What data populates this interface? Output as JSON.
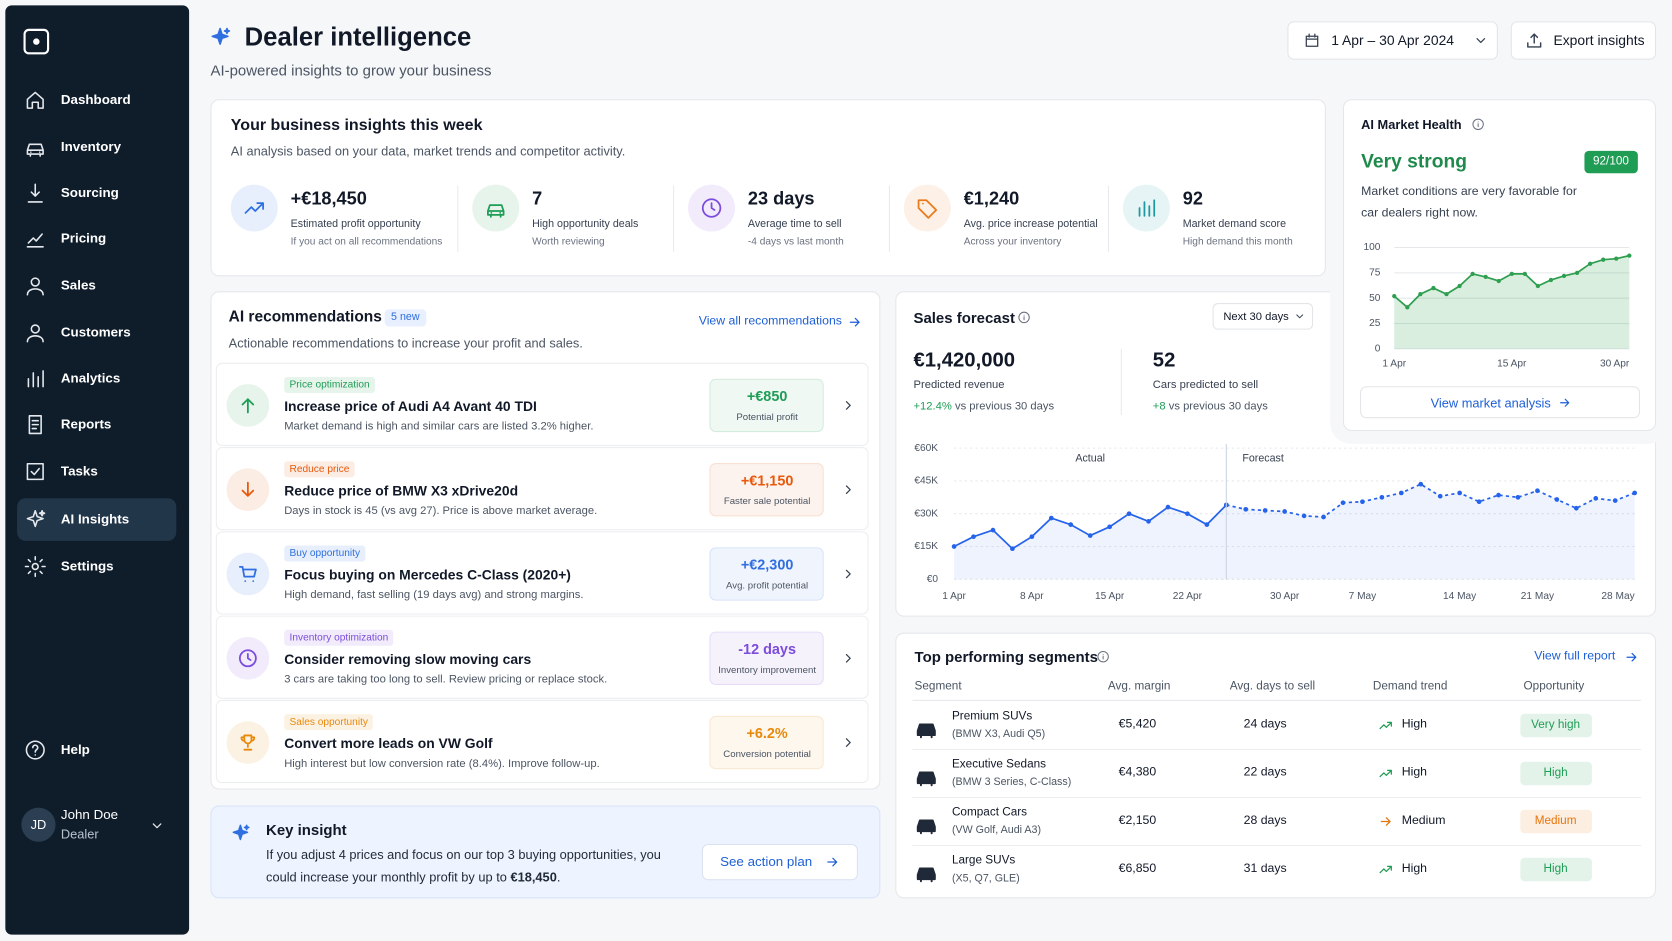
{
  "sidebar": {
    "nav": [
      "Dashboard",
      "Inventory",
      "Sourcing",
      "Pricing",
      "Sales",
      "Customers",
      "Analytics",
      "Reports",
      "Tasks",
      "AI Insights",
      "Settings"
    ],
    "help": "Help",
    "user": {
      "initials": "JD",
      "name": "John Doe",
      "role": "Dealer"
    }
  },
  "header": {
    "title": "Dealer intelligence",
    "subtitle": "AI-powered insights to grow your business",
    "date_range": "1 Apr – 30 Apr 2024",
    "export": "Export insights"
  },
  "insights": {
    "title": "Your business insights this week",
    "subtitle": "AI analysis based on your data, market trends and competitor activity.",
    "items": [
      {
        "value": "+€18,450",
        "label": "Estimated profit opportunity",
        "note": "If you act on all recommendations",
        "color": "#2f6fe0"
      },
      {
        "value": "7",
        "label": "High opportunity deals",
        "note": "Worth reviewing",
        "color": "#1f9d55"
      },
      {
        "value": "23 days",
        "label": "Average time to sell",
        "note": "-4 days vs last month",
        "color": "#7c4ddb"
      },
      {
        "value": "€1,240",
        "label": "Avg. price increase potential",
        "note": "Across your inventory",
        "color": "#ea7a1a"
      },
      {
        "value": "92",
        "label": "Market demand score",
        "note": "High demand this month",
        "color": "#1c9aa0"
      }
    ]
  },
  "recommendations": {
    "title": "AI recommendations",
    "badge": "5 new",
    "link": "View all recommendations",
    "subtitle": "Actionable recommendations to increase your profit and sales.",
    "items": [
      {
        "tag": "Price optimization",
        "title": "Increase price of Audi A4 Avant 40 TDI",
        "description": "Market demand is high and similar cars are listed 3.2% higher.",
        "impact": "+€850",
        "impact_label": "Potential profit",
        "color": "#1f9d55"
      },
      {
        "tag": "Reduce price",
        "title": "Reduce price of BMW X3 xDrive20d",
        "description": "Days in stock is 45 (vs avg 27). Price is above market average.",
        "impact": "+€1,150",
        "impact_label": "Faster sale potential",
        "color": "#e8590c"
      },
      {
        "tag": "Buy opportunity",
        "title": "Focus buying on Mercedes C-Class (2020+)",
        "description": "High demand, fast selling (19 days avg) and strong margins.",
        "impact": "+€2,300",
        "impact_label": "Avg. profit potential",
        "color": "#2f6fe0"
      },
      {
        "tag": "Inventory optimization",
        "title": "Consider removing slow moving cars",
        "description": "3 cars are taking too long to sell. Review pricing or replace stock.",
        "impact": "-12 days",
        "impact_label": "Inventory improvement",
        "color": "#7c4ddb"
      },
      {
        "tag": "Sales opportunity",
        "title": "Convert more leads on VW Golf",
        "description": "High interest but low conversion rate (8.4%). Improve follow-up.",
        "impact": "+6.2%",
        "impact_label": "Conversion potential",
        "color": "#e8890c"
      }
    ]
  },
  "key_insight": {
    "title": "Key insight",
    "text": "If you adjust 4 prices and focus on our top 3 buying opportunities, you could increase your monthly profit by up to",
    "highlight": "€18,450",
    "end": ".",
    "button": "See action plan"
  },
  "market_health": {
    "title": "AI Market Health",
    "rating": "Very strong",
    "score": "92/100",
    "description": "Market conditions are very favorable for car dealers right now.",
    "link": "View market analysis"
  },
  "sales_forecast": {
    "title": "Sales forecast",
    "period": "Next 30 days",
    "stats": [
      {
        "value": "€1,420,000",
        "label": "Predicted revenue",
        "change": "+12.4%",
        "compare": "vs previous 30 days"
      },
      {
        "value": "52",
        "label": "Cars predicted to sell",
        "change": "+8",
        "compare": "vs previous 30 days"
      }
    ]
  },
  "segments": {
    "title": "Top performing segments",
    "link": "View full report",
    "columns": [
      "Segment",
      "Avg. margin",
      "Avg. days to sell",
      "Demand trend",
      "Opportunity"
    ],
    "rows": [
      {
        "name": "Premium SUVs",
        "models": "(BMW X3, Audi Q5)",
        "margin": "€5,420",
        "days": "24 days",
        "trend": "High",
        "opportunity": "Very high",
        "color": "#1f9d55"
      },
      {
        "name": "Executive Sedans",
        "models": "(BMW 3 Series, C-Class)",
        "margin": "€4,380",
        "days": "22 days",
        "trend": "High",
        "opportunity": "High",
        "color": "#1f9d55"
      },
      {
        "name": "Compact Cars",
        "models": "(VW Golf, Audi A3)",
        "margin": "€2,150",
        "days": "28 days",
        "trend": "Medium",
        "opportunity": "Medium",
        "color": "#e8740c"
      },
      {
        "name": "Large SUVs",
        "models": "(X5, Q7, GLE)",
        "margin": "€6,850",
        "days": "31 days",
        "trend": "High",
        "opportunity": "High",
        "color": "#1f9d55"
      }
    ]
  },
  "chart_data": [
    {
      "type": "line",
      "categories": [
        "1 Apr",
        null,
        null,
        null,
        null,
        null,
        null,
        null,
        null,
        "15 Apr",
        null,
        null,
        null,
        null,
        null,
        null,
        null,
        null,
        "30 Apr"
      ],
      "values": [
        52,
        41,
        54,
        60,
        54,
        62,
        74,
        71,
        67,
        74,
        74,
        62,
        68,
        72,
        75,
        84,
        88,
        89,
        92
      ],
      "color": "#2e9e4f",
      "ylim": [
        0,
        100
      ],
      "yticks": [
        0,
        25,
        50,
        75,
        100
      ],
      "grid": true
    },
    {
      "type": "line",
      "categories": [
        "1 Apr",
        null,
        null,
        null,
        "8 Apr",
        null,
        null,
        null,
        "15 Apr",
        null,
        null,
        null,
        "22 Apr",
        null,
        null,
        null,
        null,
        "30 Apr",
        null,
        null,
        null,
        "7 May",
        null,
        null,
        null,
        null,
        "14 May",
        null,
        null,
        null,
        "21 May",
        null,
        null,
        null,
        null,
        "28 May"
      ],
      "series": [
        {
          "name": "Actual",
          "color": "#2563eb",
          "dashed": false,
          "values": [
            15000,
            19500,
            22500,
            14000,
            19500,
            28000,
            25000,
            20000,
            24000,
            30000,
            26500,
            33000,
            30000,
            25000,
            34000,
            null,
            null,
            null,
            null,
            null,
            null,
            null,
            null,
            null,
            null,
            null,
            null,
            null,
            null,
            null,
            null,
            null,
            null,
            null,
            null,
            null
          ]
        },
        {
          "name": "Forecast",
          "color": "#2563eb",
          "dashed": true,
          "values": [
            null,
            null,
            null,
            null,
            null,
            null,
            null,
            null,
            null,
            null,
            null,
            null,
            null,
            null,
            34000,
            32000,
            31500,
            31000,
            29000,
            28500,
            35000,
            35500,
            37500,
            39500,
            43500,
            38000,
            39500,
            35500,
            38500,
            37500,
            40500,
            36500,
            32500,
            37000,
            36000,
            39500
          ]
        }
      ],
      "ylim": [
        0,
        60000
      ],
      "yticks": [
        {
          "value": 0,
          "label": "€0"
        },
        {
          "value": 15000,
          "label": "€15K"
        },
        {
          "value": 30000,
          "label": "€30K"
        },
        {
          "value": 45000,
          "label": "€45K"
        },
        {
          "value": 60000,
          "label": "€60K"
        }
      ],
      "grid": true
    }
  ]
}
